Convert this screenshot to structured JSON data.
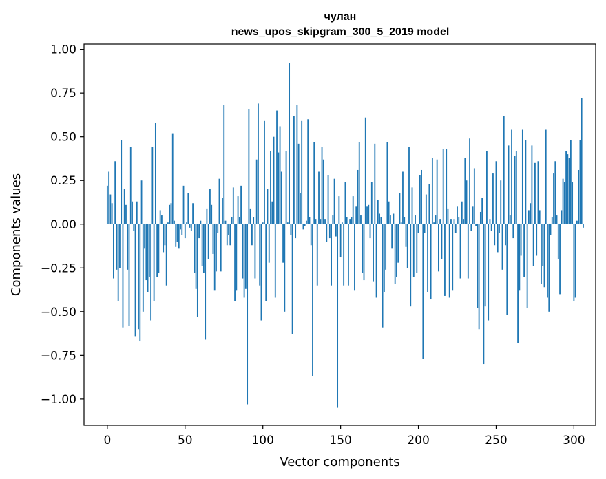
{
  "chart_data": {
    "type": "bar",
    "title": "чулан",
    "subtitle": "news_upos_skipgram_300_5_2019 model",
    "xlabel": "Vector components",
    "ylabel": "Components values",
    "xlim": [
      -15,
      314
    ],
    "ylim": [
      -1.15,
      1.03
    ],
    "xticks": [
      0,
      50,
      100,
      150,
      200,
      250,
      300
    ],
    "xtick_labels": [
      "0",
      "50",
      "100",
      "150",
      "200",
      "250",
      "300"
    ],
    "yticks": [
      1.0,
      0.75,
      0.5,
      0.25,
      0.0,
      -0.25,
      -0.5,
      -0.75,
      -1.0
    ],
    "ytick_labels": [
      "1.00",
      "0.75",
      "0.50",
      "0.25",
      "0.00",
      "−0.25",
      "−0.50",
      "−0.75",
      "−1.00"
    ],
    "bar_color": "#1f77b4",
    "values": [
      0.22,
      0.3,
      0.17,
      0.12,
      -0.31,
      0.36,
      -0.26,
      -0.44,
      -0.25,
      0.48,
      -0.59,
      0.2,
      0.11,
      -0.26,
      -0.58,
      0.44,
      0.13,
      -0.04,
      -0.64,
      0.13,
      -0.6,
      -0.67,
      0.25,
      -0.5,
      -0.14,
      -0.32,
      -0.39,
      -0.3,
      -0.55,
      0.44,
      -0.44,
      0.58,
      -0.3,
      -0.28,
      0.08,
      0.05,
      -0.16,
      -0.12,
      -0.35,
      0.01,
      0.11,
      0.12,
      0.52,
      0.02,
      -0.13,
      -0.1,
      -0.14,
      -0.03,
      -0.06,
      0.22,
      -0.08,
      0.01,
      0.18,
      -0.02,
      -0.04,
      0.12,
      -0.28,
      -0.37,
      -0.53,
      -0.08,
      0.02,
      -0.24,
      -0.28,
      -0.66,
      0.09,
      -0.2,
      0.2,
      0.11,
      -0.17,
      -0.38,
      -0.27,
      -0.05,
      0.26,
      -0.27,
      0.15,
      0.68,
      0.02,
      -0.12,
      -0.06,
      -0.12,
      0.04,
      0.21,
      -0.44,
      -0.38,
      0.16,
      0.04,
      0.22,
      -0.31,
      -0.42,
      -0.37,
      -1.03,
      0.66,
      0.09,
      -0.12,
      0.04,
      -0.31,
      0.37,
      0.69,
      -0.35,
      -0.55,
      0.01,
      0.59,
      -0.44,
      0.2,
      -0.22,
      0.42,
      0.13,
      0.5,
      -0.42,
      0.65,
      0.41,
      0.56,
      0.3,
      -0.22,
      -0.5,
      0.42,
      0.01,
      0.92,
      -0.06,
      -0.63,
      0.62,
      -0.08,
      0.68,
      0.46,
      0.18,
      0.59,
      -0.03,
      -0.01,
      0.02,
      0.6,
      0.04,
      -0.12,
      -0.87,
      0.47,
      0.03,
      -0.35,
      0.3,
      0.03,
      0.44,
      0.37,
      0.03,
      -0.1,
      0.28,
      -0.08,
      -0.35,
      0.05,
      0.26,
      -0.07,
      -1.05,
      0.16,
      -0.19,
      0.01,
      -0.35,
      0.24,
      0.04,
      -0.35,
      0.03,
      0.04,
      0.16,
      -0.38,
      0.1,
      0.31,
      0.47,
      0.05,
      -0.28,
      -0.32,
      0.61,
      0.1,
      0.11,
      -0.08,
      0.24,
      -0.33,
      0.46,
      -0.42,
      0.14,
      0.06,
      0.04,
      -0.59,
      -0.39,
      -0.26,
      0.47,
      0.13,
      0.05,
      -0.14,
      0.06,
      -0.34,
      -0.3,
      -0.22,
      0.18,
      0.01,
      0.3,
      0.04,
      -0.13,
      -0.25,
      0.44,
      -0.47,
      0.21,
      -0.3,
      0.05,
      -0.28,
      -0.05,
      0.28,
      0.31,
      -0.77,
      -0.05,
      0.17,
      -0.39,
      0.23,
      -0.43,
      0.38,
      0.01,
      0.05,
      0.37,
      -0.27,
      0.03,
      -0.2,
      0.43,
      -0.41,
      0.43,
      0.09,
      -0.42,
      0.03,
      -0.38,
      0.03,
      -0.05,
      0.1,
      0.04,
      -0.31,
      0.13,
      0.03,
      0.38,
      0.25,
      -0.31,
      0.49,
      -0.04,
      0.1,
      0.32,
      -0.01,
      -0.48,
      -0.6,
      0.07,
      0.15,
      -0.8,
      -0.47,
      0.42,
      -0.55,
      0.03,
      -0.04,
      0.29,
      -0.12,
      0.36,
      -0.16,
      -0.05,
      0.25,
      -0.26,
      0.62,
      -0.12,
      -0.52,
      0.45,
      0.05,
      0.54,
      -0.08,
      0.39,
      0.42,
      -0.68,
      -0.38,
      -0.18,
      0.54,
      -0.3,
      0.48,
      -0.48,
      0.08,
      0.12,
      0.45,
      -0.24,
      0.35,
      -0.18,
      0.36,
      0.08,
      -0.34,
      -0.24,
      -0.36,
      0.54,
      -0.42,
      -0.5,
      -0.06,
      0.04,
      0.29,
      0.36,
      0.05,
      -0.2,
      -0.4,
      0.08,
      0.26,
      0.24,
      0.42,
      0.4,
      0.38,
      0.48,
      0.24,
      -0.44,
      -0.42,
      0.02,
      0.31,
      0.48,
      0.72,
      -0.02
    ]
  }
}
